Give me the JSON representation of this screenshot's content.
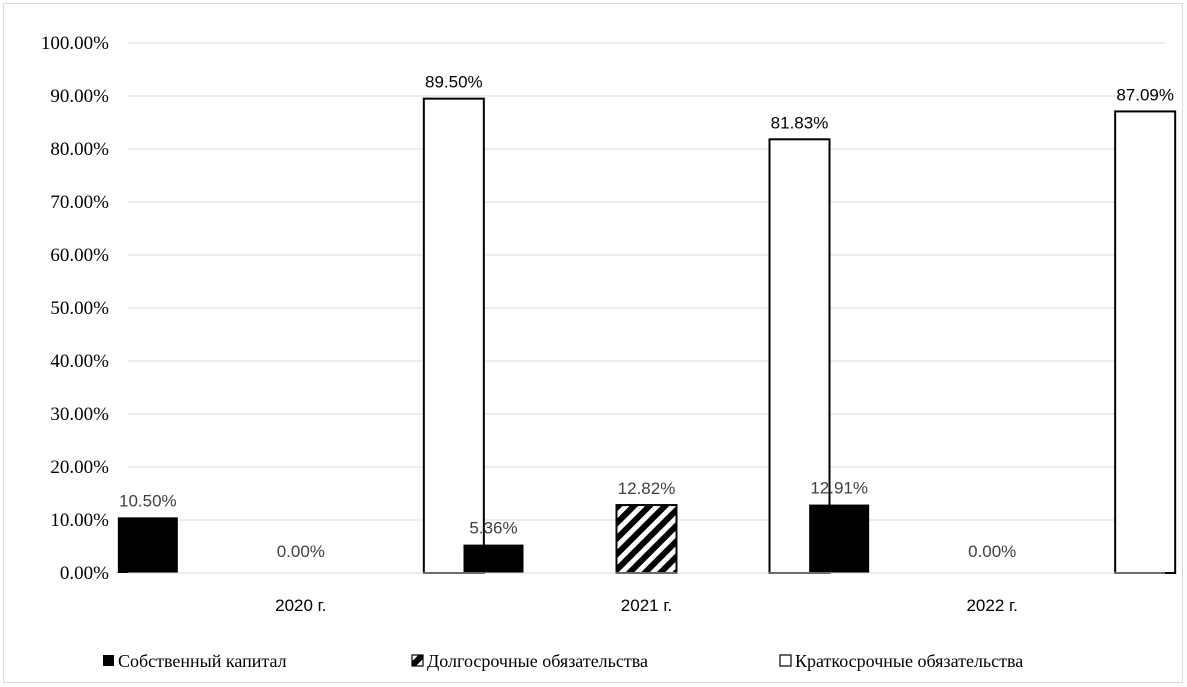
{
  "chart_data": {
    "type": "bar",
    "categories": [
      "2020 г.",
      "2021 г.",
      "2022 г."
    ],
    "series": [
      {
        "name": "Собственный капитал",
        "values": [
          10.5,
          5.36,
          12.91
        ],
        "labels": [
          "10.50%",
          "5.36%",
          "12.91%"
        ],
        "fill": "#000000",
        "pattern": "solid"
      },
      {
        "name": "Долгосрочные обязательства",
        "values": [
          0.0,
          12.82,
          0.0
        ],
        "labels": [
          "0.00%",
          "12.82%",
          "0.00%"
        ],
        "fill": "#000000",
        "pattern": "diagonal-stripes"
      },
      {
        "name": "Краткосрочные обязательства",
        "values": [
          89.5,
          81.83,
          87.09
        ],
        "labels": [
          "89.50%",
          "81.83%",
          "87.09%"
        ],
        "fill": "#ffffff",
        "pattern": "outline"
      }
    ],
    "yticks": [
      "0.00%",
      "10.00%",
      "20.00%",
      "30.00%",
      "40.00%",
      "50.00%",
      "60.00%",
      "70.00%",
      "80.00%",
      "90.00%",
      "100.00%"
    ],
    "ylim": [
      0,
      100
    ],
    "grid": true,
    "legend_position": "bottom",
    "title": "",
    "xlabel": "",
    "ylabel": "",
    "colors": {
      "grid": "#d9d9d9",
      "label_dark": "#404040",
      "label_black": "#000000"
    }
  }
}
